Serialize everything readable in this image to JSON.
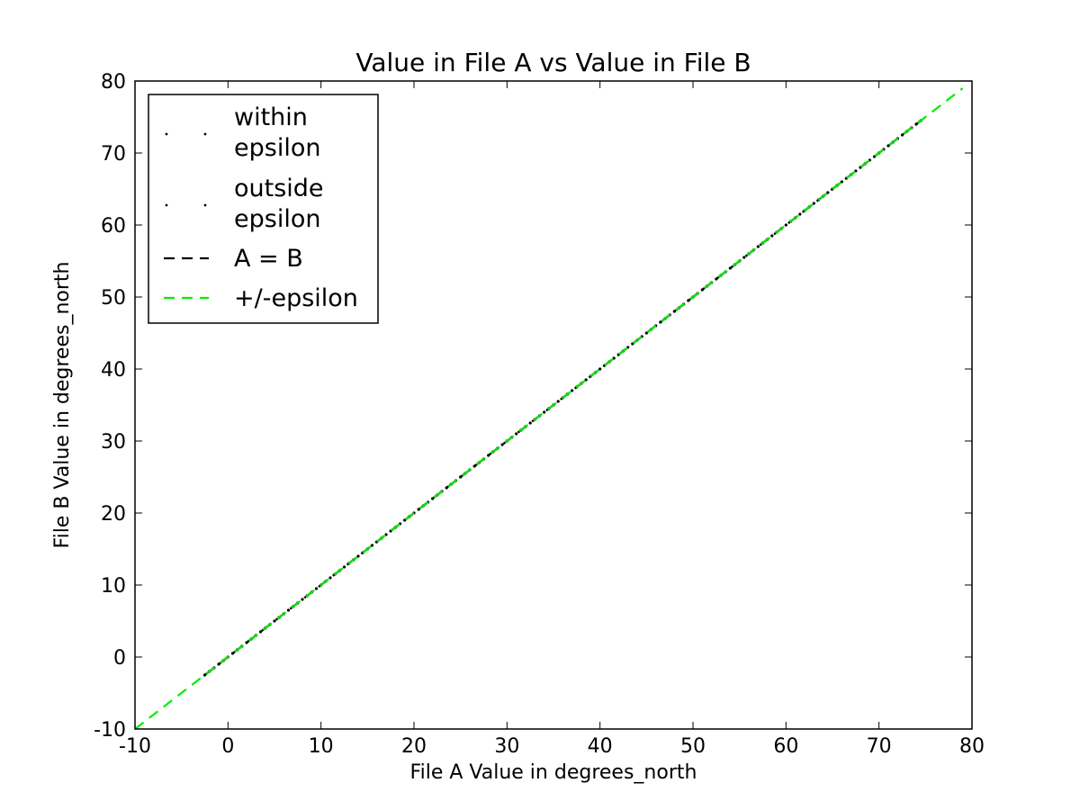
{
  "chart_data": {
    "type": "line",
    "title": "Value in File A vs Value in File B",
    "xlabel": "File A Value in degrees_north",
    "ylabel": "File B Value in degrees_north",
    "xlim": [
      -10,
      80
    ],
    "ylim": [
      -10,
      80
    ],
    "xticks": [
      -10,
      0,
      10,
      20,
      30,
      40,
      50,
      60,
      70,
      80
    ],
    "yticks": [
      -10,
      0,
      10,
      20,
      30,
      40,
      50,
      60,
      70,
      80
    ],
    "xtick_labels": [
      "-10",
      "0",
      "10",
      "20",
      "30",
      "40",
      "50",
      "60",
      "70",
      "80"
    ],
    "ytick_labels": [
      "-10",
      "0",
      "10",
      "20",
      "30",
      "40",
      "50",
      "60",
      "70",
      "80"
    ],
    "legend_position": "top-left",
    "grid": false,
    "series": [
      {
        "name": "within epsilon",
        "kind": "points",
        "color": "#000000",
        "x_range": [
          -2.5,
          74.5
        ],
        "relation": "y = x"
      },
      {
        "name": "outside epsilon",
        "kind": "points",
        "color": "#000000",
        "x": [],
        "y": []
      },
      {
        "name": "A = B",
        "kind": "line",
        "style": "dashed",
        "color": "#000000",
        "x": [
          -2.5,
          74.5
        ],
        "y": [
          -2.5,
          74.5
        ]
      },
      {
        "name": "+/-epsilon",
        "kind": "line",
        "style": "dashed",
        "color": "#00ee00",
        "x": [
          -10,
          79
        ],
        "y": [
          -10,
          79
        ]
      }
    ],
    "legend_labels": [
      [
        "within",
        "epsilon"
      ],
      [
        "outside",
        "epsilon"
      ],
      [
        "A = B"
      ],
      [
        "+/-epsilon"
      ]
    ]
  }
}
